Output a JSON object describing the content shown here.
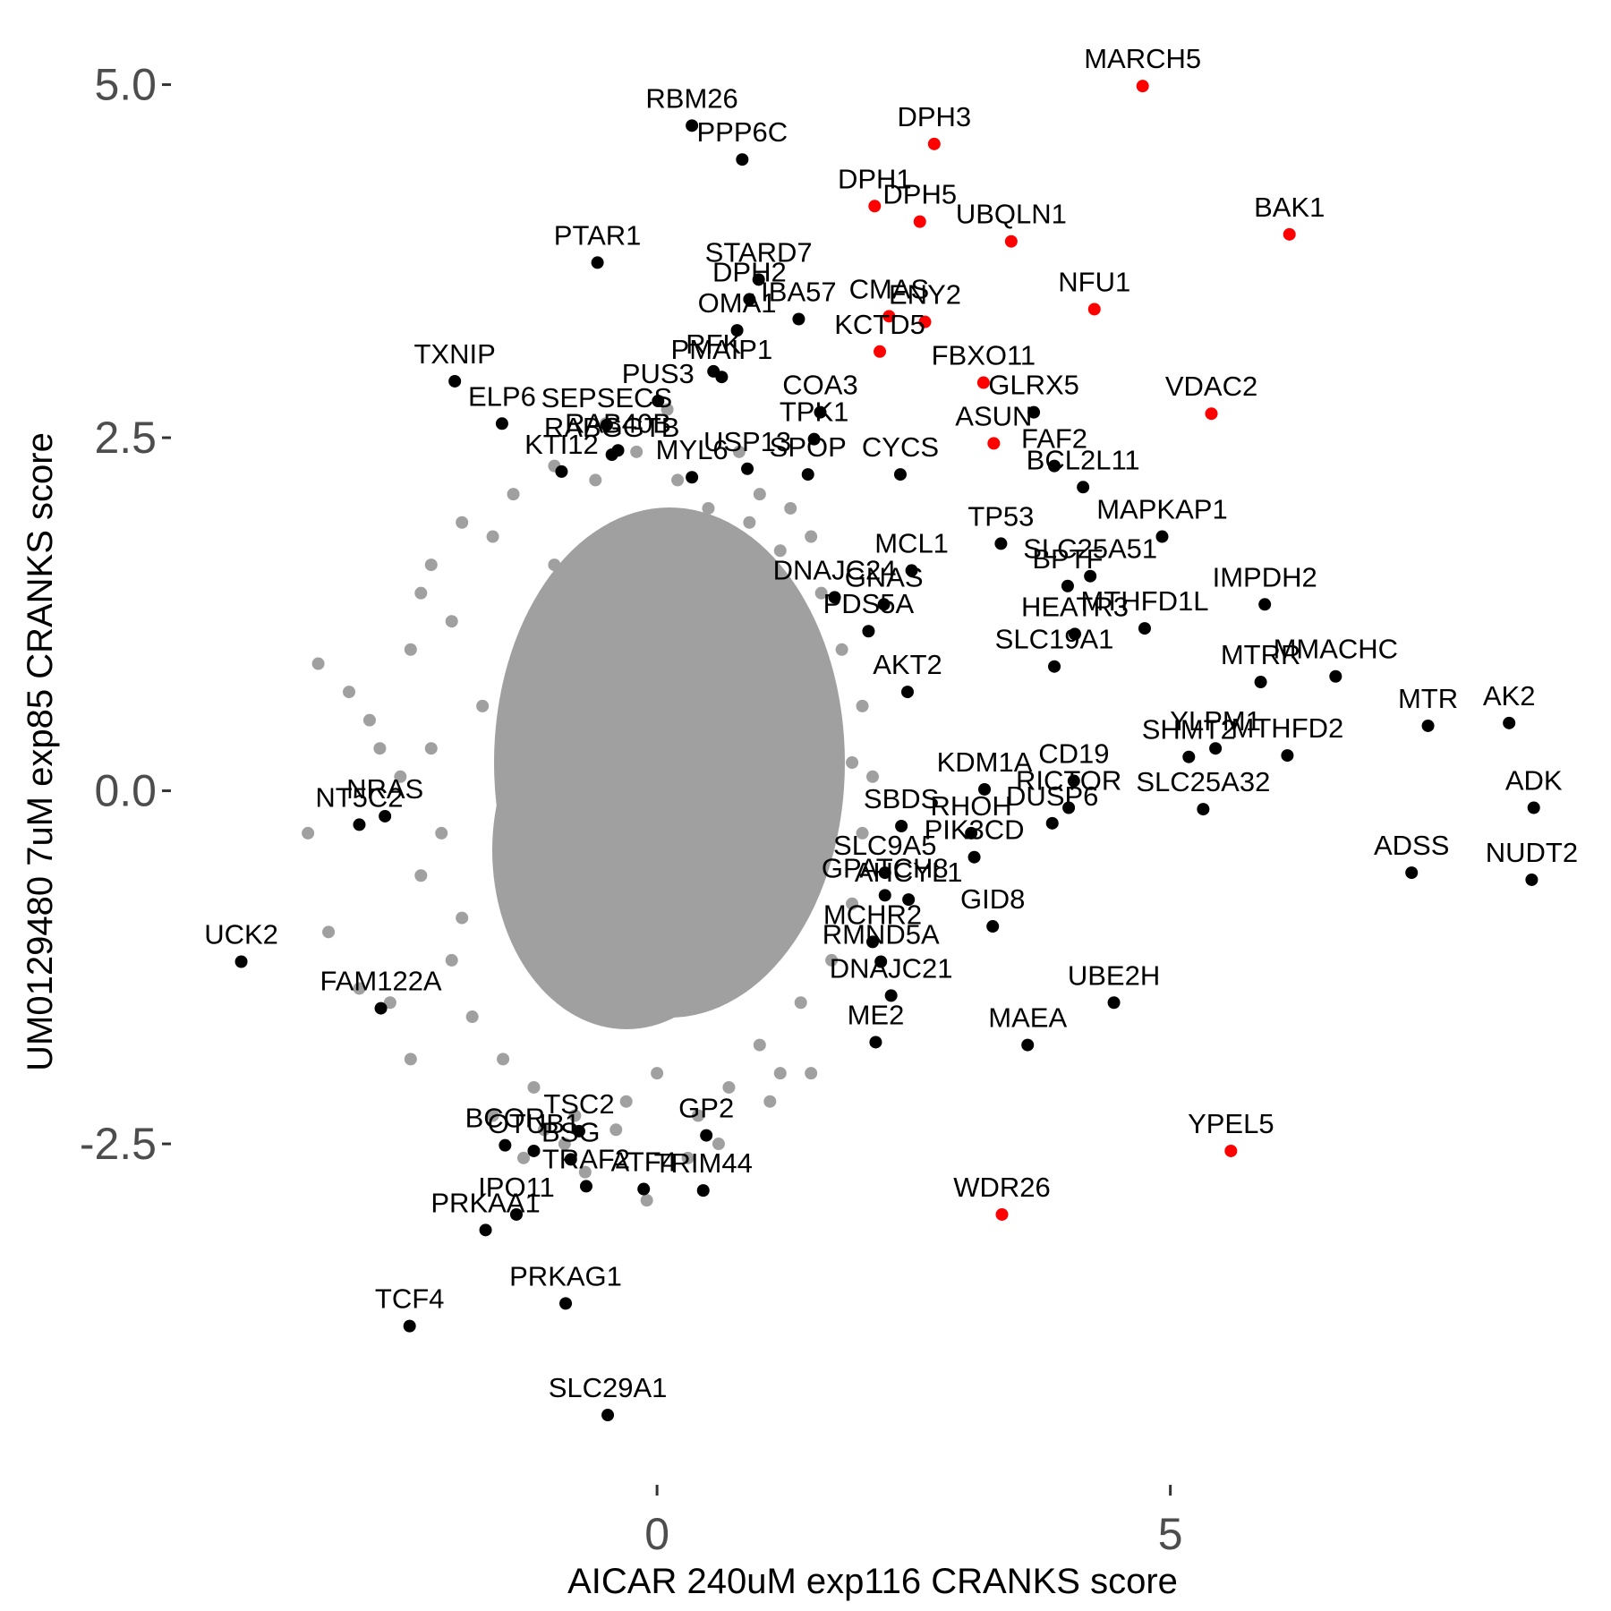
{
  "chart_data": {
    "type": "scatter",
    "x_label": "AICAR 240uM exp116 CRANKS score",
    "y_label": "UM0129480 7uM exp85 CRANKS score",
    "xlim": [
      -4.7,
      8.9
    ],
    "ylim": [
      -4.8,
      5.2
    ],
    "xticks": [
      0,
      5
    ],
    "yticks": [
      -2.5,
      {
        "value": 0,
        "label": "0.0"
      },
      2.5,
      {
        "value": 5,
        "label": "5.0"
      }
    ],
    "grid": false,
    "series": [
      {
        "color": "#a0a0a0",
        "x": [
          -3.0,
          -2.8,
          -3.4,
          -3.2,
          -2.9,
          -2.6,
          -2.2,
          -2.4,
          -2.0,
          -1.9,
          -1.6,
          -1.5,
          -1.4,
          -1.2,
          -1.0,
          -0.8,
          -0.6,
          -0.4,
          -0.2,
          0.0,
          0.2,
          0.4,
          0.5,
          0.7,
          0.9,
          1.0,
          1.2,
          1.4,
          1.6,
          1.7,
          1.8,
          1.9,
          2.0,
          2.0,
          1.9,
          1.5,
          -1.8,
          -2.1,
          -2.2,
          -1.7,
          -2.3,
          -2.5,
          -1.3,
          -1.1,
          -0.7,
          -0.1,
          0.3,
          0.6,
          1.1,
          1.3,
          -2.7,
          -2.4,
          -1.9,
          -1.6,
          0.8,
          1.0,
          -0.5,
          -1.0,
          1.7,
          2.1,
          -3.3,
          -2.0,
          -1.5,
          0.1,
          -0.3,
          1.5,
          -2.3,
          -1.2,
          -0.9,
          1.2
        ],
        "y": [
          0.7,
          0.5,
          -0.3,
          -1.0,
          -1.4,
          -1.5,
          1.6,
          1.0,
          1.2,
          -0.9,
          1.8,
          -1.9,
          2.1,
          -2.1,
          2.3,
          -2.3,
          2.2,
          -2.4,
          2.4,
          -2.0,
          2.2,
          -2.3,
          2.0,
          -2.1,
          1.9,
          -1.8,
          1.7,
          -1.5,
          1.4,
          -1.2,
          1.0,
          -0.8,
          0.6,
          -0.3,
          0.2,
          -2.0,
          -1.6,
          -0.3,
          0.3,
          0.6,
          -0.6,
          0.1,
          -2.6,
          -2.4,
          -2.7,
          -2.9,
          -2.6,
          -2.5,
          -2.2,
          2.0,
          0.3,
          -1.9,
          1.9,
          -2.3,
          2.4,
          2.1,
          2.6,
          1.6,
          0.5,
          0.1,
          0.9,
          -1.2,
          0.4,
          2.7,
          -2.2,
          1.8,
          1.4,
          -1.1,
          -2.5,
          -2.0
        ]
      },
      {
        "color": "#000000",
        "labels": [
          "RBM26",
          "PPP6C",
          "PTAR1",
          "STARD7",
          "DPH2",
          "IBA57",
          "OMA1",
          "PMAIP1",
          "RFK",
          "TXNIP",
          "PUS3",
          "COA3",
          "ELP6",
          "SEPSECS",
          "TPK1",
          "RAB40B",
          "KTI12",
          "MYL6",
          "RABGGTB",
          "USP13",
          "SPOP",
          "CYCS",
          "GLRX5",
          "FAF2",
          "BCL2L11",
          "MAPKAP1",
          "MCL1",
          "TP53",
          "SLC25A51",
          "IMPDH2",
          "DNAJC24",
          "GNAS",
          "BPTF",
          "MTHFD1L",
          "HEATR3",
          "MTRR",
          "MMACHC",
          "PDS5A",
          "SLC19A1",
          "AK2",
          "MTR",
          "MTHFD2",
          "AKT2",
          "CD19",
          "YLPM1",
          "KDM1A",
          "SHMT2",
          "SBDS",
          "RICTOR",
          "DUSP6",
          "ADSS",
          "ADK",
          "NUDT2",
          "SLC9A5",
          "PIK3CD",
          "SLC25A32",
          "AHCYL1",
          "MCHR2",
          "RHOH",
          "RMND5A",
          "GPATCH8",
          "GID8",
          "UBE2H",
          "ME2",
          "MAEA",
          "DNAJC21",
          "NRAS",
          "NT5C2",
          "UCK2",
          "FAM122A",
          "TSC2",
          "BSG",
          "BCOR",
          "GP2",
          "ATF4",
          "TRAF2",
          "TRIM44",
          "IPO11",
          "OTUB1",
          "PRKAA1",
          "TCF4",
          "PRKAG1",
          "SLC29A1"
        ],
        "x": [
          0.34,
          0.83,
          -0.58,
          0.99,
          0.9,
          1.38,
          0.78,
          0.63,
          0.55,
          -1.97,
          0.01,
          1.59,
          -1.51,
          -0.49,
          1.53,
          -0.38,
          -0.93,
          0.34,
          -0.44,
          0.88,
          1.47,
          2.37,
          3.67,
          3.87,
          4.15,
          4.92,
          2.48,
          3.35,
          4.22,
          5.92,
          1.73,
          2.21,
          4.0,
          4.75,
          4.07,
          5.88,
          6.61,
          2.06,
          3.87,
          8.3,
          7.51,
          6.14,
          2.44,
          4.06,
          5.44,
          3.19,
          5.18,
          2.38,
          4.01,
          3.85,
          7.35,
          8.54,
          8.52,
          2.22,
          3.09,
          5.32,
          2.45,
          2.1,
          3.06,
          2.18,
          2.22,
          3.27,
          4.45,
          2.13,
          3.61,
          2.28,
          -2.65,
          -2.9,
          -4.05,
          -2.69,
          -0.76,
          -0.84,
          -1.48,
          0.48,
          -0.13,
          -0.69,
          0.45,
          -1.37,
          -1.2,
          -1.67,
          -2.41,
          -0.89,
          -0.48
        ],
        "y": [
          4.71,
          4.47,
          3.74,
          3.62,
          3.48,
          3.34,
          3.26,
          2.93,
          2.97,
          2.9,
          2.76,
          2.68,
          2.6,
          2.59,
          2.49,
          2.41,
          2.26,
          2.22,
          2.38,
          2.28,
          2.24,
          2.24,
          2.68,
          2.3,
          2.15,
          1.8,
          1.56,
          1.75,
          1.52,
          1.32,
          1.37,
          1.32,
          1.45,
          1.15,
          1.11,
          0.77,
          0.81,
          1.13,
          0.88,
          0.48,
          0.46,
          0.25,
          0.7,
          0.07,
          0.3,
          0.01,
          0.24,
          -0.25,
          -0.12,
          -0.23,
          -0.58,
          -0.12,
          -0.63,
          -0.58,
          -0.47,
          -0.13,
          -0.77,
          -1.07,
          -0.3,
          -1.21,
          -0.74,
          -0.96,
          -1.5,
          -1.78,
          -1.8,
          -1.45,
          -0.18,
          -0.24,
          -1.21,
          -1.54,
          -2.41,
          -2.61,
          -2.51,
          -2.44,
          -2.82,
          -2.8,
          -2.83,
          -3.0,
          -2.55,
          -3.11,
          -3.79,
          -3.63,
          -4.42
        ]
      },
      {
        "color": "#ff0000",
        "labels": [
          "MARCH5",
          "DPH3",
          "DPH1",
          "DPH5",
          "UBQLN1",
          "BAK1",
          "NFU1",
          "CMAS",
          "ENY2",
          "KCTD5",
          "FBXO11",
          "ASUN",
          "VDAC2",
          "YPEL5",
          "WDR26"
        ],
        "x": [
          4.73,
          2.7,
          2.12,
          2.56,
          3.45,
          6.16,
          4.26,
          2.26,
          2.61,
          2.17,
          3.18,
          3.28,
          5.4,
          5.59,
          3.36
        ],
        "y": [
          4.99,
          4.58,
          4.14,
          4.03,
          3.89,
          3.94,
          3.41,
          3.36,
          3.32,
          3.11,
          2.89,
          2.46,
          2.67,
          -2.55,
          -3.0
        ]
      }
    ]
  }
}
